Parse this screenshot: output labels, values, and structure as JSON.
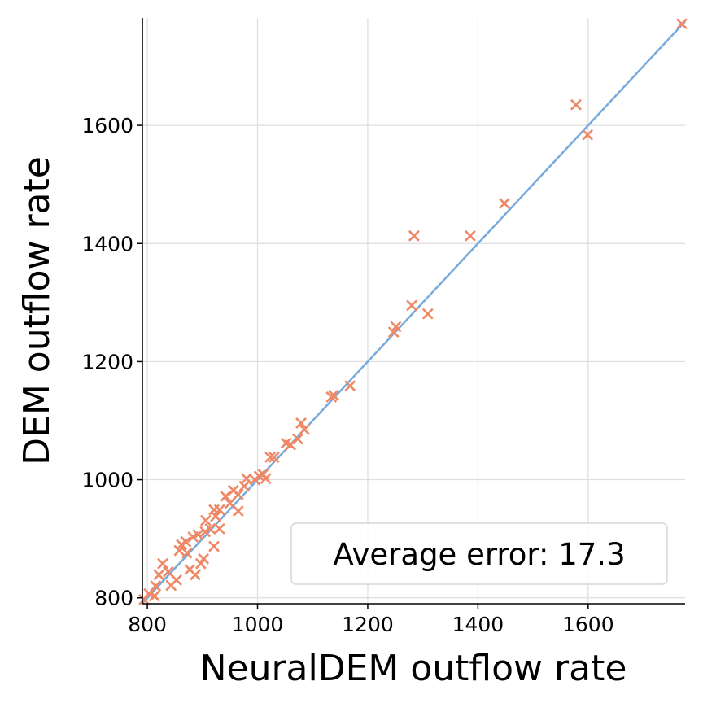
{
  "chart_data": {
    "type": "scatter",
    "title": "",
    "xlabel": "NeuralDEM outflow rate",
    "ylabel": "DEM outflow rate",
    "xlim": [
      791,
      1776
    ],
    "ylim": [
      790,
      1782
    ],
    "xticks": [
      800,
      1000,
      1200,
      1400,
      1600
    ],
    "yticks": [
      800,
      1000,
      1200,
      1400,
      1600
    ],
    "xtick_labels": [
      "800",
      "1000",
      "1200",
      "1400",
      "1600"
    ],
    "ytick_labels": [
      "800",
      "1000",
      "1200",
      "1400",
      "1600"
    ],
    "grid": true,
    "annotation": "Average error: 17.3",
    "annotation_placement": "bottom-right",
    "reference_line": {
      "name": "y = x",
      "from": [
        791,
        791
      ],
      "to": [
        1776,
        1776
      ]
    },
    "colors": {
      "marker": "#ee8866",
      "line": "#77aadd",
      "grid": "#dddddd"
    },
    "series": [
      {
        "name": "samples",
        "marker": "x",
        "points": [
          [
            1770,
            1772
          ],
          [
            1578,
            1635
          ],
          [
            1599,
            1584
          ],
          [
            1448,
            1468
          ],
          [
            1386,
            1413
          ],
          [
            1284,
            1413
          ],
          [
            1280,
            1295
          ],
          [
            1309,
            1281
          ],
          [
            1247,
            1250
          ],
          [
            1251,
            1259
          ],
          [
            1134,
            1140
          ],
          [
            1138,
            1143
          ],
          [
            1168,
            1159
          ],
          [
            1079,
            1096
          ],
          [
            1085,
            1085
          ],
          [
            1052,
            1062
          ],
          [
            1060,
            1059
          ],
          [
            1073,
            1069
          ],
          [
            1023,
            1038
          ],
          [
            1030,
            1038
          ],
          [
            980,
            1002
          ],
          [
            1010,
            1009
          ],
          [
            1015,
            1002
          ],
          [
            956,
            982
          ],
          [
            965,
            975
          ],
          [
            931,
            949
          ],
          [
            924,
            938
          ],
          [
            965,
            947
          ],
          [
            906,
            931
          ],
          [
            892,
            907
          ],
          [
            883,
            903
          ],
          [
            921,
            887
          ],
          [
            862,
            890
          ],
          [
            858,
            880
          ],
          [
            902,
            866
          ],
          [
            897,
            858
          ],
          [
            877,
            848
          ],
          [
            887,
            839
          ],
          [
            828,
            858
          ],
          [
            821,
            839
          ],
          [
            838,
            844
          ],
          [
            853,
            830
          ],
          [
            843,
            821
          ],
          [
            803,
            807
          ],
          [
            813,
            803
          ],
          [
            794,
            797
          ],
          [
            921,
            949
          ],
          [
            942,
            972
          ],
          [
            976,
            989
          ],
          [
            914,
            917
          ],
          [
            872,
            876
          ],
          [
            931,
            917
          ],
          [
            1003,
            1006
          ],
          [
            995,
            1000
          ],
          [
            950,
            960
          ],
          [
            870,
            895
          ],
          [
            905,
            912
          ],
          [
            815,
            820
          ]
        ]
      }
    ]
  }
}
